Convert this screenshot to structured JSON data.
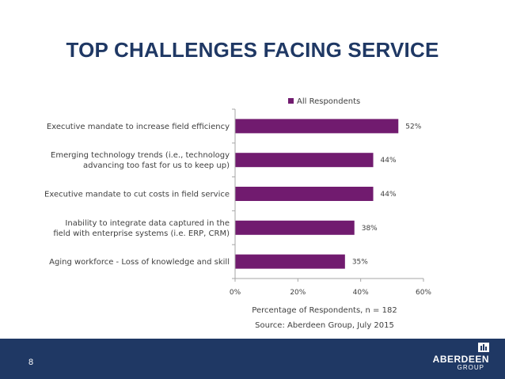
{
  "slide": {
    "title": "TOP CHALLENGES FACING SERVICE",
    "page_number": "8",
    "source": "Source: Aberdeen Group, July 2015",
    "logo_line1": "ABERDEEN",
    "logo_line2": "GROUP"
  },
  "colors": {
    "bar": "#711b6f",
    "title": "#1f3864",
    "footer": "#1f3864",
    "axis": "#a6a6a6"
  },
  "chart_data": {
    "type": "bar",
    "orientation": "horizontal",
    "categories": [
      [
        "Executive mandate to increase field efficiency"
      ],
      [
        "Emerging technology trends (i.e., technology",
        "advancing too fast for us to keep up)"
      ],
      [
        "Executive mandate to cut costs in field service"
      ],
      [
        "Inability to integrate data captured in the",
        "field with enterprise systems (i.e. ERP, CRM)"
      ],
      [
        "Aging workforce - Loss of knowledge and skill"
      ]
    ],
    "series": [
      {
        "name": "All Respondents",
        "values": [
          52,
          44,
          44,
          38,
          35
        ]
      }
    ],
    "data_labels": [
      "52%",
      "44%",
      "44%",
      "38%",
      "35%"
    ],
    "x_ticks": [
      "0%",
      "20%",
      "40%",
      "60%"
    ],
    "xlim": [
      0,
      60
    ],
    "xlabel": "Percentage of Respondents, n = 182",
    "legend_position": "top",
    "grid": false
  }
}
